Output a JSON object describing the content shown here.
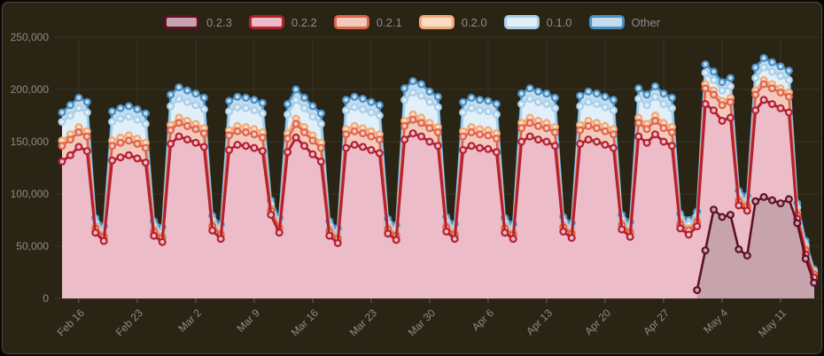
{
  "panel": {
    "background": "#2a2415",
    "outer_border": "#0a0905",
    "inner_border": "#4c463c"
  },
  "axis_style": {
    "label_color": "#8f8b80",
    "grid_color": "#3a3425",
    "tick_color": "#6a6456",
    "font_size": 12
  },
  "legend": {
    "items": [
      {
        "label": "0.2.3",
        "line_color": "#5e1125",
        "fill_color": "#c7a3ae"
      },
      {
        "label": "0.2.2",
        "line_color": "#b5202f",
        "fill_color": "#ecbcc8"
      },
      {
        "label": "0.2.1",
        "line_color": "#df644a",
        "fill_color": "#f2c9bd"
      },
      {
        "label": "0.2.0",
        "line_color": "#f2a878",
        "fill_color": "#f9dcc3"
      },
      {
        "label": "0.1.0",
        "line_color": "#a9cfe8",
        "fill_color": "#e1eff8"
      },
      {
        "label": "Other",
        "line_color": "#4a90c3",
        "fill_color": "#c3ddef"
      }
    ]
  },
  "y_axis": {
    "min": 0,
    "max": 250000,
    "step": 50000,
    "tick_labels_top_down": [
      "250,000",
      "200,000",
      "150,000",
      "100,000",
      "50,000",
      "0"
    ]
  },
  "x_axis": {
    "tick_labels": [
      "Feb 16",
      "Feb 23",
      "Mar 2",
      "Mar 9",
      "Mar 16",
      "Mar 23",
      "Mar 30",
      "Apr 6",
      "Apr 13",
      "Apr 20",
      "Apr 27",
      "May 4",
      "May 11"
    ],
    "interval": "daily points, weekly ticks",
    "first_tick_point_index": 2,
    "tick_every_n_points": 7
  },
  "chart_data": {
    "type": "area",
    "mode": "layered-overlapping-lines-with-markers",
    "ylim": [
      0,
      250000
    ],
    "n_points": 91,
    "value_multiplier": 1000,
    "series": [
      {
        "name": "0.2.3",
        "start_index": 76,
        "values_thousands": [
          8,
          46,
          85,
          78,
          80,
          47,
          41,
          93,
          97,
          94,
          91,
          95,
          72,
          38,
          15
        ]
      },
      {
        "name": "0.2.2",
        "start_index": 0,
        "values_thousands": [
          131,
          137,
          145,
          141,
          63,
          55,
          132,
          135,
          137,
          134,
          130,
          60,
          54,
          148,
          155,
          152,
          149,
          145,
          65,
          57,
          142,
          147,
          146,
          144,
          141,
          80,
          63,
          140,
          154,
          146,
          138,
          131,
          60,
          53,
          144,
          147,
          145,
          142,
          139,
          62,
          56,
          152,
          158,
          155,
          150,
          146,
          64,
          57,
          142,
          146,
          144,
          143,
          140,
          63,
          57,
          150,
          155,
          152,
          150,
          146,
          64,
          58,
          148,
          152,
          150,
          147,
          144,
          66,
          59,
          155,
          149,
          157,
          150,
          146,
          67,
          61,
          69,
          186,
          180,
          170,
          173,
          89,
          84,
          180,
          190,
          186,
          182,
          178,
          76,
          42,
          20
        ]
      },
      {
        "name": "0.2.1",
        "start_index": 0,
        "values_thousands": [
          146,
          152,
          159,
          155,
          67,
          59,
          146,
          149,
          151,
          148,
          144,
          64,
          58,
          161,
          168,
          165,
          162,
          158,
          69,
          61,
          156,
          160,
          159,
          157,
          154,
          84,
          67,
          153,
          167,
          159,
          151,
          144,
          64,
          57,
          157,
          160,
          158,
          155,
          152,
          66,
          60,
          165,
          171,
          168,
          163,
          159,
          68,
          61,
          155,
          159,
          157,
          156,
          153,
          67,
          61,
          163,
          168,
          165,
          163,
          159,
          68,
          62,
          161,
          165,
          163,
          160,
          157,
          70,
          63,
          168,
          162,
          170,
          163,
          159,
          71,
          65,
          73,
          201,
          195,
          185,
          188,
          93,
          88,
          195,
          205,
          201,
          197,
          193,
          80,
          46,
          23
        ]
      },
      {
        "name": "0.2.0",
        "start_index": 0,
        "values_thousands": [
          151,
          157,
          164,
          160,
          69,
          61,
          151,
          154,
          156,
          153,
          149,
          66,
          60,
          166,
          173,
          170,
          167,
          163,
          71,
          63,
          161,
          165,
          164,
          162,
          159,
          86,
          69,
          158,
          172,
          164,
          156,
          149,
          66,
          59,
          162,
          165,
          163,
          160,
          157,
          68,
          62,
          170,
          176,
          173,
          168,
          164,
          70,
          63,
          160,
          164,
          162,
          161,
          158,
          69,
          63,
          168,
          173,
          170,
          168,
          164,
          70,
          64,
          166,
          170,
          168,
          165,
          162,
          72,
          65,
          173,
          167,
          175,
          168,
          164,
          73,
          67,
          75,
          205,
          199,
          189,
          192,
          95,
          90,
          199,
          209,
          205,
          201,
          197,
          82,
          48,
          24
        ]
      },
      {
        "name": "0.1.0",
        "start_index": 0,
        "values_thousands": [
          169,
          175,
          182,
          178,
          73,
          65,
          169,
          172,
          174,
          171,
          167,
          70,
          64,
          184,
          191,
          188,
          185,
          181,
          75,
          67,
          179,
          183,
          182,
          180,
          177,
          90,
          73,
          176,
          190,
          182,
          174,
          167,
          70,
          63,
          180,
          183,
          181,
          178,
          175,
          72,
          66,
          190,
          197,
          194,
          188,
          183,
          74,
          67,
          178,
          182,
          180,
          179,
          176,
          73,
          67,
          186,
          191,
          188,
          186,
          182,
          74,
          68,
          184,
          188,
          186,
          183,
          180,
          76,
          69,
          191,
          185,
          193,
          186,
          182,
          77,
          71,
          79,
          216,
          209,
          199,
          203,
          99,
          94,
          211,
          221,
          217,
          213,
          209,
          87,
          51,
          26
        ]
      },
      {
        "name": "Other",
        "start_index": 0,
        "values_thousands": [
          178,
          185,
          192,
          188,
          77,
          69,
          179,
          182,
          184,
          181,
          177,
          74,
          68,
          195,
          202,
          199,
          196,
          192,
          79,
          71,
          189,
          193,
          192,
          190,
          187,
          94,
          77,
          186,
          200,
          192,
          184,
          177,
          74,
          67,
          190,
          193,
          191,
          188,
          185,
          76,
          70,
          201,
          208,
          205,
          198,
          193,
          78,
          71,
          188,
          192,
          190,
          189,
          186,
          77,
          71,
          196,
          201,
          198,
          196,
          192,
          78,
          72,
          194,
          198,
          196,
          193,
          190,
          80,
          73,
          201,
          195,
          203,
          196,
          192,
          81,
          75,
          83,
          224,
          217,
          207,
          211,
          103,
          98,
          221,
          230,
          226,
          222,
          218,
          91,
          55,
          28
        ]
      }
    ]
  }
}
